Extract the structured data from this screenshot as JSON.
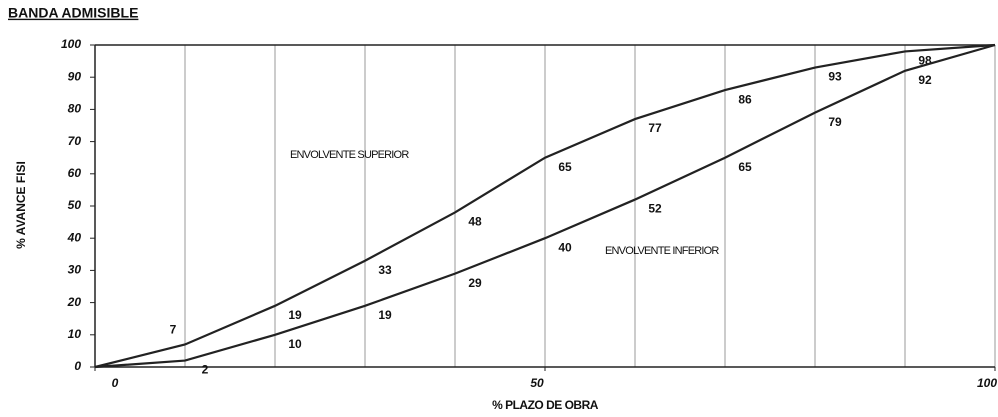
{
  "chart_data": {
    "type": "line",
    "title": "BANDA ADMISIBLE",
    "x_label": "% PLAZO DE OBRA",
    "y_label": "% AVANCE FISI",
    "x": [
      0,
      10,
      20,
      30,
      40,
      50,
      60,
      70,
      80,
      90,
      100
    ],
    "series": [
      {
        "name": "ENVOLVENTE SUPERIOR",
        "color": "#222222",
        "values": [
          0,
          7,
          19,
          33,
          48,
          65,
          77,
          86,
          93,
          98,
          100
        ]
      },
      {
        "name": "ENVOLVENTE INFERIOR",
        "color": "#222222",
        "values": [
          0,
          2,
          10,
          19,
          29,
          40,
          52,
          65,
          79,
          92,
          100
        ]
      }
    ],
    "xlim": [
      0,
      100
    ],
    "xticks": [
      0,
      50,
      100
    ],
    "ylim": [
      0,
      100
    ],
    "yticks": [
      0,
      10,
      20,
      30,
      40,
      50,
      60,
      70,
      80,
      90,
      100
    ],
    "grid": true
  }
}
